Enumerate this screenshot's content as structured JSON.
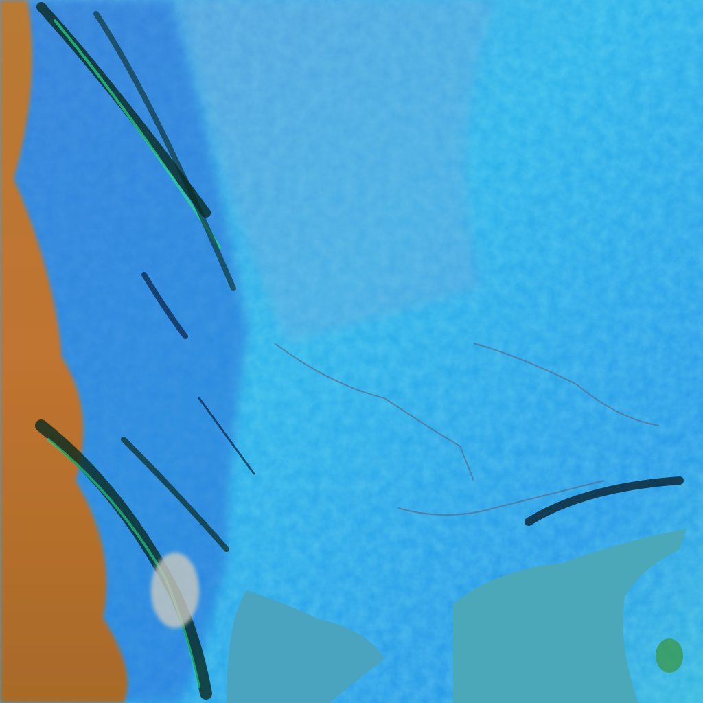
{
  "image": {
    "kind": "false-color satellite imagery",
    "colors": {
      "snow_cover": "#2fb8e8",
      "snow_bright": "#3fd6ee",
      "haze": "#6aa8d8",
      "clouds_land": "#b8742e",
      "cloud_dark": "#0a2a20",
      "cloud_green": "#2ad88a",
      "water": "#4aa8b8",
      "deep_blue": "#1e6ee0"
    }
  }
}
